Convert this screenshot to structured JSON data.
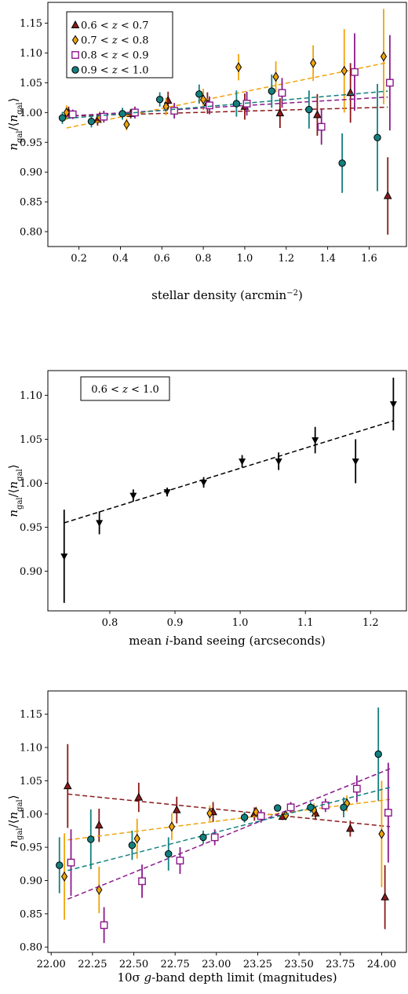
{
  "chart_data": [
    {
      "type": "scatter",
      "xlabel": "stellar density (arcmin⁻²)",
      "ylabel": "n_gal/⟨n_gal⟩",
      "xlim": [
        0.05,
        1.78
      ],
      "ylim": [
        0.775,
        1.185
      ],
      "xticks": [
        0.2,
        0.4,
        0.6,
        0.8,
        1.0,
        1.2,
        1.4,
        1.6
      ],
      "xtick_labels": [
        "0.2",
        "0.4",
        "0.6",
        "0.8",
        "1.0",
        "1.2",
        "1.4",
        "1.6"
      ],
      "yticks": [
        0.8,
        0.85,
        0.9,
        0.95,
        1.0,
        1.05,
        1.1,
        1.15
      ],
      "ytick_labels": [
        "0.80",
        "0.85",
        "0.90",
        "0.95",
        "1.00",
        "1.05",
        "1.10",
        "1.15"
      ],
      "legend_position": "top-left",
      "series": [
        {
          "name": "0.6 < z < 0.7",
          "marker": "triangle-up",
          "color": "#8b1a1a",
          "fill": "#8b1a1a",
          "x": [
            0.15,
            0.29,
            0.45,
            0.63,
            0.82,
            1.0,
            1.17,
            1.35,
            1.51,
            1.69
          ],
          "y": [
            1.0,
            0.988,
            0.998,
            1.02,
            1.016,
            1.01,
            0.999,
            0.996,
            1.033,
            0.86
          ],
          "err": [
            0.01,
            0.01,
            0.008,
            0.015,
            0.018,
            0.022,
            0.025,
            0.035,
            0.05,
            0.065
          ],
          "fit": [
            [
              0.14,
              0.994
            ],
            [
              1.69,
              1.009
            ]
          ]
        },
        {
          "name": "0.7 < z < 0.8",
          "marker": "diamond",
          "color": "#f0a30a",
          "fill": "#f0a30a",
          "x": [
            0.14,
            0.3,
            0.43,
            0.62,
            0.8,
            0.97,
            1.15,
            1.33,
            1.48,
            1.67
          ],
          "y": [
            1.0,
            0.992,
            0.98,
            1.01,
            1.022,
            1.076,
            1.06,
            1.083,
            1.07,
            1.094
          ],
          "err": [
            0.012,
            0.01,
            0.01,
            0.015,
            0.018,
            0.022,
            0.026,
            0.03,
            0.07,
            0.08
          ],
          "fit": [
            [
              0.14,
              0.974
            ],
            [
              1.69,
              1.084
            ]
          ]
        },
        {
          "name": "0.8 < z < 0.9",
          "marker": "square-open",
          "color": "#8b1a8b",
          "fill": "#ffffff",
          "x": [
            0.17,
            0.32,
            0.47,
            0.66,
            0.83,
            1.01,
            1.18,
            1.37,
            1.53,
            1.7
          ],
          "y": [
            0.997,
            0.993,
            1.0,
            1.003,
            1.012,
            1.015,
            1.033,
            0.976,
            1.068,
            1.05
          ],
          "err": [
            0.008,
            0.01,
            0.01,
            0.013,
            0.015,
            0.02,
            0.025,
            0.03,
            0.065,
            0.08
          ],
          "fit": [
            [
              0.14,
              0.994
            ],
            [
              1.69,
              1.026
            ]
          ]
        },
        {
          "name": "0.9 < z < 1.0",
          "marker": "circle",
          "color": "#137f7f",
          "fill": "#137f7f",
          "x": [
            0.12,
            0.26,
            0.41,
            0.59,
            0.78,
            0.96,
            1.13,
            1.31,
            1.47,
            1.64
          ],
          "y": [
            0.991,
            0.985,
            0.998,
            1.022,
            1.031,
            1.015,
            1.036,
            1.005,
            0.915,
            0.958
          ],
          "err": [
            0.01,
            0.01,
            0.01,
            0.012,
            0.016,
            0.022,
            0.028,
            0.032,
            0.05,
            0.09
          ],
          "fit": [
            [
              0.14,
              0.99
            ],
            [
              1.69,
              1.036
            ]
          ]
        }
      ]
    },
    {
      "type": "scatter",
      "xlabel": "mean i-band seeing (arcseconds)",
      "ylabel": "n_gal/⟨n_gal⟩",
      "annotation": "0.6 < z < 1.0",
      "xlim": [
        0.705,
        1.255
      ],
      "ylim": [
        0.855,
        1.128
      ],
      "xticks": [
        0.8,
        0.9,
        1.0,
        1.1,
        1.2
      ],
      "xtick_labels": [
        "0.8",
        "0.9",
        "1.0",
        "1.1",
        "1.2"
      ],
      "yticks": [
        0.9,
        0.95,
        1.0,
        1.05,
        1.1
      ],
      "ytick_labels": [
        "0.90",
        "0.95",
        "1.00",
        "1.05",
        "1.10"
      ],
      "series": [
        {
          "marker": "triangle-down",
          "color": "#000000",
          "fill": "#000000",
          "x": [
            0.73,
            0.784,
            0.836,
            0.888,
            0.944,
            1.003,
            1.059,
            1.115,
            1.177,
            1.235
          ],
          "y": [
            0.917,
            0.955,
            0.986,
            0.99,
            1.001,
            1.025,
            1.025,
            1.049,
            1.025,
            1.09
          ],
          "err": [
            0.053,
            0.013,
            0.007,
            0.005,
            0.006,
            0.007,
            0.01,
            0.015,
            0.025,
            0.03
          ],
          "fit": [
            [
              0.73,
              0.955
            ],
            [
              1.235,
              1.071
            ]
          ]
        }
      ]
    },
    {
      "type": "scatter",
      "xlabel": "10σ g-band depth limit (magnitudes)",
      "ylabel": "n_gal/⟨n_gal⟩",
      "xlim": [
        21.98,
        24.15
      ],
      "ylim": [
        0.792,
        1.185
      ],
      "xticks": [
        22.0,
        22.25,
        22.5,
        22.75,
        23.0,
        23.25,
        23.5,
        23.75,
        24.0
      ],
      "xtick_labels": [
        "22.00",
        "22.25",
        "22.50",
        "22.75",
        "23.00",
        "23.25",
        "23.50",
        "23.75",
        "24.00"
      ],
      "yticks": [
        0.8,
        0.85,
        0.9,
        0.95,
        1.0,
        1.05,
        1.1,
        1.15
      ],
      "ytick_labels": [
        "0.80",
        "0.85",
        "0.90",
        "0.95",
        "1.00",
        "1.05",
        "1.10",
        "1.15"
      ],
      "series": [
        {
          "name": "0.6 < z < 0.7",
          "marker": "triangle-up",
          "color": "#8b1a1a",
          "fill": "#8b1a1a",
          "x": [
            22.1,
            22.29,
            22.53,
            22.76,
            22.98,
            23.23,
            23.4,
            23.6,
            23.81,
            24.02
          ],
          "y": [
            1.042,
            0.983,
            1.025,
            1.006,
            1.003,
            1.0,
            0.996,
            1.001,
            0.978,
            0.875
          ],
          "err": [
            0.063,
            0.025,
            0.022,
            0.02,
            0.015,
            0.01,
            0.005,
            0.01,
            0.012,
            0.048
          ],
          "fit": [
            [
              22.1,
              1.03
            ],
            [
              24.05,
              0.981
            ]
          ]
        },
        {
          "name": "0.7 < z < 0.8",
          "marker": "diamond",
          "color": "#f0a30a",
          "fill": "#f0a30a",
          "x": [
            22.08,
            22.29,
            22.52,
            22.73,
            22.96,
            23.24,
            23.42,
            23.59,
            23.79,
            24.0
          ],
          "y": [
            0.906,
            0.886,
            0.963,
            0.981,
            1.001,
            1.003,
            0.998,
            1.006,
            1.016,
            0.97
          ],
          "err": [
            0.065,
            0.035,
            0.03,
            0.02,
            0.012,
            0.008,
            0.006,
            0.01,
            0.012,
            0.08
          ],
          "fit": [
            [
              22.1,
              0.961
            ],
            [
              24.05,
              1.022
            ]
          ]
        },
        {
          "name": "0.8 < z < 0.9",
          "marker": "square-open",
          "color": "#8b1a8b",
          "fill": "#ffffff",
          "x": [
            22.12,
            22.32,
            22.55,
            22.78,
            22.99,
            23.27,
            23.45,
            23.66,
            23.85,
            24.04
          ],
          "y": [
            0.927,
            0.833,
            0.899,
            0.93,
            0.965,
            0.997,
            1.01,
            1.013,
            1.038,
            1.002
          ],
          "err": [
            0.05,
            0.027,
            0.025,
            0.02,
            0.012,
            0.01,
            0.008,
            0.01,
            0.02,
            0.075
          ],
          "fit": [
            [
              22.1,
              0.872
            ],
            [
              24.05,
              1.068
            ]
          ]
        },
        {
          "name": "0.9 < z < 1.0",
          "marker": "circle",
          "color": "#137f7f",
          "fill": "#137f7f",
          "x": [
            22.05,
            22.24,
            22.49,
            22.71,
            22.92,
            23.17,
            23.37,
            23.57,
            23.77,
            23.98
          ],
          "y": [
            0.923,
            0.962,
            0.953,
            0.94,
            0.965,
            0.995,
            1.009,
            1.01,
            1.01,
            1.09
          ],
          "err": [
            0.042,
            0.045,
            0.022,
            0.025,
            0.01,
            0.008,
            0.005,
            0.008,
            0.015,
            0.07
          ],
          "fit": [
            [
              22.1,
              0.915
            ],
            [
              24.05,
              1.04
            ]
          ]
        }
      ]
    }
  ]
}
